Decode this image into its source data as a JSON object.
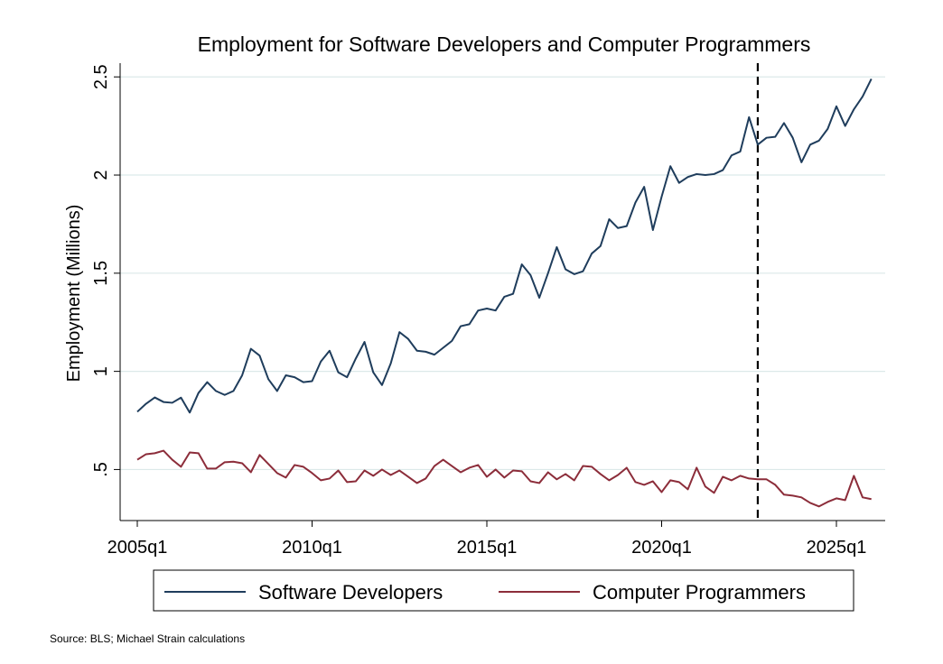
{
  "chart_data": {
    "type": "line",
    "title": "Employment for Software Developers and Computer Programmers",
    "y_label": "Employment (Millions)",
    "source": "Source: BLS; Michael Strain calculations",
    "categories": [
      "2005q1",
      null,
      null,
      null,
      null,
      null,
      null,
      null,
      null,
      null,
      null,
      null,
      null,
      null,
      null,
      null,
      null,
      null,
      null,
      null,
      "2010q1",
      null,
      null,
      null,
      null,
      null,
      null,
      null,
      null,
      null,
      null,
      null,
      null,
      null,
      null,
      null,
      null,
      null,
      null,
      null,
      "2015q1",
      null,
      null,
      null,
      null,
      null,
      null,
      null,
      null,
      null,
      null,
      null,
      null,
      null,
      null,
      null,
      null,
      null,
      null,
      null,
      "2020q1",
      null,
      null,
      null,
      null,
      null,
      null,
      null,
      null,
      null,
      null,
      null,
      null,
      null,
      null,
      null,
      null,
      null,
      null,
      null,
      "2025q1",
      null,
      null,
      null,
      null
    ],
    "series": [
      {
        "name": "Software Developers",
        "color": "#1f3d5c",
        "values": [
          0.794,
          0.835,
          0.867,
          0.844,
          0.84,
          0.866,
          0.79,
          0.89,
          0.945,
          0.9,
          0.88,
          0.9,
          0.98,
          1.115,
          1.08,
          0.96,
          0.9,
          0.98,
          0.97,
          0.945,
          0.95,
          1.05,
          1.105,
          0.995,
          0.97,
          1.065,
          1.15,
          0.995,
          0.93,
          1.04,
          1.2,
          1.165,
          1.105,
          1.1,
          1.085,
          1.12,
          1.155,
          1.23,
          1.24,
          1.31,
          1.32,
          1.31,
          1.38,
          1.395,
          1.545,
          1.49,
          1.375,
          1.5,
          1.633,
          1.52,
          1.495,
          1.51,
          1.6,
          1.638,
          1.775,
          1.73,
          1.74,
          1.86,
          1.94,
          1.72,
          1.89,
          2.045,
          1.96,
          1.99,
          2.005,
          2.0,
          2.005,
          2.025,
          2.1,
          2.12,
          2.295,
          2.155,
          2.19,
          2.195,
          2.265,
          2.19,
          2.065,
          2.155,
          2.175,
          2.235,
          2.35,
          2.25,
          2.335,
          2.4,
          2.49
        ]
      },
      {
        "name": "Computer Programmers",
        "color": "#8c2d3a",
        "values": [
          0.55,
          0.578,
          0.583,
          0.596,
          0.55,
          0.514,
          0.587,
          0.583,
          0.505,
          0.505,
          0.537,
          0.54,
          0.532,
          0.486,
          0.574,
          0.528,
          0.482,
          0.459,
          0.523,
          0.514,
          0.482,
          0.445,
          0.454,
          0.495,
          0.436,
          0.44,
          0.495,
          0.468,
          0.5,
          0.472,
          0.495,
          0.463,
          0.431,
          0.454,
          0.518,
          0.55,
          0.518,
          0.486,
          0.509,
          0.523,
          0.463,
          0.5,
          0.459,
          0.495,
          0.491,
          0.44,
          0.431,
          0.486,
          0.45,
          0.477,
          0.445,
          0.518,
          0.514,
          0.477,
          0.445,
          0.472,
          0.509,
          0.436,
          0.422,
          0.44,
          0.385,
          0.445,
          0.436,
          0.399,
          0.509,
          0.413,
          0.381,
          0.463,
          0.445,
          0.468,
          0.454,
          0.45,
          0.45,
          0.422,
          0.372,
          0.367,
          0.358,
          0.33,
          0.312,
          0.335,
          0.353,
          0.344,
          0.468,
          0.358,
          0.349
        ]
      }
    ],
    "ylim": [
      0.24,
      2.57
    ],
    "yticks": [
      {
        "value": 0.5,
        "label": ".5"
      },
      1,
      1.5,
      2,
      2.5
    ],
    "grid": true,
    "reference_line": {
      "category_index": 71,
      "style": "dashed"
    },
    "legend": "bottom"
  }
}
